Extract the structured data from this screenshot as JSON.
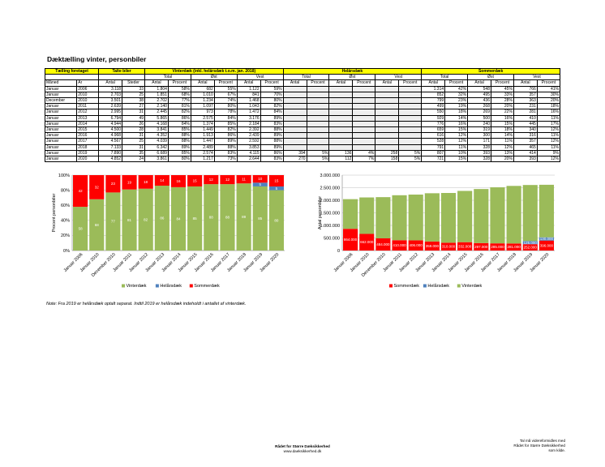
{
  "title": "Dæktælling vinter, personbiler",
  "table": {
    "header1": {
      "taelling": "Tælling foretaget",
      "talte": "Talte biler",
      "vinter": "Vinterdæk (inkl. helårsdæk t.o.m. jan. 2018)",
      "helaar": "Helårsdæk",
      "sommer": "Sommerdæk"
    },
    "header2": {
      "total": "Total",
      "ost": "Øst",
      "vest": "Vest"
    },
    "header3": {
      "maaned": "Måned",
      "aar": "År",
      "antal": "Antal",
      "steder": "Steder",
      "procent": "Procent"
    },
    "rows": [
      [
        "Januar",
        "2006",
        "3.118",
        "33",
        "1.804",
        "58%",
        "682",
        "55%",
        "1.122",
        "59%",
        "",
        "",
        "",
        "",
        "",
        "",
        "1.314",
        "42%",
        "548",
        "45%",
        "766",
        "41%"
      ],
      [
        "Januar",
        "2010",
        "2.703",
        "25",
        "1.851",
        "68%",
        "1.010",
        "67%",
        "841",
        "70%",
        "",
        "",
        "",
        "",
        "",
        "",
        "852",
        "32%",
        "495",
        "33%",
        "357",
        "30%"
      ],
      [
        "December",
        "2010",
        "3.501",
        "38",
        "2.702",
        "77%",
        "1.234",
        "74%",
        "1.468",
        "80%",
        "",
        "",
        "",
        "",
        "",
        "",
        "799",
        "23%",
        "436",
        "28%",
        "363",
        "20%"
      ],
      [
        "Januar",
        "2011",
        "2.639",
        "27",
        "2.140",
        "81%",
        "1.097",
        "80%",
        "1.043",
        "82%",
        "",
        "",
        "",
        "",
        "",
        "",
        "499",
        "19%",
        "268",
        "20%",
        "231",
        "18%"
      ],
      [
        "Januar",
        "2012",
        "2.995",
        "31",
        "2.445",
        "82%",
        "973",
        "78%",
        "1.472",
        "84%",
        "",
        "",
        "",
        "",
        "",
        "",
        "550",
        "18%",
        "269",
        "22%",
        "281",
        "16%"
      ],
      [
        "Januar",
        "2013",
        "6.794",
        "49",
        "5.865",
        "86%",
        "2.575",
        "84%",
        "3.176",
        "89%",
        "",
        "",
        "",
        "",
        "",
        "",
        "929",
        "14%",
        "500",
        "16%",
        "410",
        "11%"
      ],
      [
        "Januar",
        "2014",
        "4.944",
        "26",
        "4.168",
        "84%",
        "1.374",
        "85%",
        "2.184",
        "83%",
        "",
        "",
        "",
        "",
        "",
        "",
        "776",
        "16%",
        "240",
        "15%",
        "445",
        "17%"
      ],
      [
        "Januar",
        "2015",
        "4.500",
        "28",
        "3.841",
        "85%",
        "1.449",
        "82%",
        "2.392",
        "88%",
        "",
        "",
        "",
        "",
        "",
        "",
        "659",
        "15%",
        "319",
        "18%",
        "340",
        "12%"
      ],
      [
        "Januar",
        "2016",
        "4.968",
        "31",
        "4.352",
        "88%",
        "1.913",
        "86%",
        "2.439",
        "89%",
        "",
        "",
        "",
        "",
        "",
        "",
        "616",
        "12%",
        "300",
        "14%",
        "316",
        "11%"
      ],
      [
        "Januar",
        "2017",
        "4.567",
        "25",
        "4.039",
        "88%",
        "1.447",
        "89%",
        "2.592",
        "88%",
        "",
        "",
        "",
        "",
        "",
        "",
        "528",
        "12%",
        "171",
        "11%",
        "357",
        "12%"
      ],
      [
        "Januar",
        "2018",
        "7.133",
        "31",
        "6.342",
        "89%",
        "2.489",
        "88%",
        "3.853",
        "89%",
        "",
        "",
        "",
        "",
        "",
        "",
        "791",
        "11%",
        "328",
        "12%",
        "465",
        "11%"
      ],
      [
        "Januar",
        "2019",
        "7.890",
        "35",
        "6.689",
        "85%",
        "2.574",
        "83%",
        "4.115",
        "86%",
        "394",
        "5%",
        "136",
        "4%",
        "258",
        "5%",
        "807",
        "10%",
        "393",
        "13%",
        "414",
        "9%"
      ],
      [
        "Januar",
        "2020",
        "4.852",
        "24",
        "3.861",
        "80%",
        "1.217",
        "73%",
        "2.644",
        "83%",
        "270",
        "5%",
        "112",
        "7%",
        "158",
        "5%",
        "721",
        "15%",
        "328",
        "20%",
        "393",
        "12%"
      ]
    ]
  },
  "chart_data": [
    {
      "type": "bar",
      "stacked": true,
      "ylabel": "Procent personbiler",
      "yticks": [
        "0%",
        "20%",
        "40%",
        "60%",
        "80%",
        "100%"
      ],
      "ylim": [
        0,
        100
      ],
      "categories": [
        "Januar 2006",
        "Januar 2010",
        "December 2010",
        "Januar 2011",
        "Januar 2012",
        "Januar 2013",
        "Januar 2014",
        "Januar 2015",
        "Januar 2016",
        "Januar 2017",
        "Januar 2018",
        "Januar 2019",
        "Januar 2020"
      ],
      "series": [
        {
          "name": "Vinterdæk",
          "color": "#9bbb59",
          "values": [
            58,
            68,
            77,
            81,
            82,
            86,
            84,
            85,
            88,
            88,
            89,
            85,
            80
          ]
        },
        {
          "name": "Helårsdæk",
          "color": "#4f81bd",
          "values": [
            0,
            0,
            0,
            0,
            0,
            0,
            0,
            0,
            0,
            0,
            0,
            5,
            5
          ]
        },
        {
          "name": "Sommerdæk",
          "color": "#ff0000",
          "values": [
            42,
            32,
            23,
            19,
            18,
            14,
            16,
            15,
            12,
            12,
            11,
            10,
            15
          ]
        }
      ],
      "legend_position": "bottom"
    },
    {
      "type": "bar",
      "stacked": true,
      "ylabel": "Antal personbiler",
      "yticks": [
        "0",
        "500.000",
        "1.000.000",
        "1.500.000",
        "2.000.000",
        "2.500.000",
        "3.000.000"
      ],
      "ylim": [
        0,
        3000000
      ],
      "categories": [
        "Januar 2006",
        "Januar 2010",
        "December 2010",
        "Januar 2011",
        "Januar 2012",
        "Januar 2013",
        "Januar 2014",
        "Januar 2015",
        "Januar 2016",
        "Januar 2017",
        "Januar 2018",
        "Januar 2019",
        "Januar 2020"
      ],
      "series": [
        {
          "name": "Sommerdæk",
          "color": "#ff0000",
          "values": [
            864000,
            662000,
            484000,
            410000,
            406000,
            359000,
            310000,
            332000,
            297000,
            285000,
            281000,
            252000,
            396000
          ],
          "labels": [
            "864.000",
            "662.000",
            "484.000",
            "410.000",
            "406.000",
            "359.000",
            "310.000",
            "332.000",
            "297.000",
            "285.000",
            "281.000",
            "252.000",
            "396.000"
          ]
        },
        {
          "name": "Helårsdæk",
          "color": "#4f81bd",
          "values": [
            0,
            0,
            0,
            0,
            0,
            0,
            0,
            0,
            0,
            0,
            0,
            125000,
            130000
          ],
          "labels": [
            "",
            "",
            "",
            "",
            "",
            "",
            "",
            "",
            "",
            "",
            "",
            "125.000",
            "130.000"
          ]
        },
        {
          "name": "Vinterdæk",
          "color": "#9bbb59",
          "values": [
            1180000,
            1450000,
            1640000,
            1790000,
            1820000,
            1920000,
            1980000,
            2040000,
            2150000,
            2230000,
            2290000,
            2230000,
            2090000
          ]
        }
      ],
      "legend_position": "bottom"
    }
  ],
  "note": "Note: Fra 2019 er helårsdæk optalt separat. Indtil 2019 er helårsdæk indeholdt i antallet af vinterdæk.",
  "footer": {
    "org": "Rådet for Større Dæksikkerhed",
    "url": "www.daeksikkerhed.dk",
    "right1": "Tal må videreformidles med",
    "right2": "Rådet for Større Dæksikkerhed",
    "right3": "som kilde."
  }
}
